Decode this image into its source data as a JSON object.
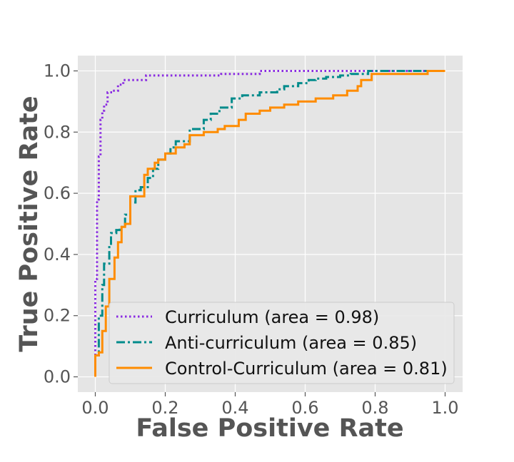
{
  "chart_data": {
    "type": "line",
    "title": "",
    "xlabel": "False Positive Rate",
    "ylabel": "True Positive Rate",
    "xlim": [
      -0.05,
      1.05
    ],
    "ylim": [
      -0.05,
      1.05
    ],
    "xticks": [
      0.0,
      0.2,
      0.4,
      0.6,
      0.8,
      1.0
    ],
    "yticks": [
      0.0,
      0.2,
      0.4,
      0.6,
      0.8,
      1.0
    ],
    "xtick_labels": [
      "0.0",
      "0.2",
      "0.4",
      "0.6",
      "0.8",
      "1.0"
    ],
    "ytick_labels": [
      "0.0",
      "0.2",
      "0.4",
      "0.6",
      "0.8",
      "1.0"
    ],
    "grid": true,
    "legend_position": "lower-right",
    "series": [
      {
        "name": "Curriculum (area = 0.98)",
        "color": "#8a2be2",
        "dash": "dotted",
        "x": [
          0,
          0,
          0.005,
          0.005,
          0.01,
          0.01,
          0.015,
          0.015,
          0.02,
          0.02,
          0.025,
          0.025,
          0.035,
          0.035,
          0.05,
          0.05,
          0.065,
          0.065,
          0.08,
          0.08,
          0.145,
          0.145,
          0.36,
          0.36,
          0.47,
          0.47,
          0.95,
          0.95,
          1.0
        ],
        "y": [
          0,
          0.32,
          0.32,
          0.58,
          0.58,
          0.72,
          0.72,
          0.84,
          0.84,
          0.87,
          0.87,
          0.89,
          0.89,
          0.93,
          0.93,
          0.935,
          0.935,
          0.955,
          0.955,
          0.97,
          0.97,
          0.985,
          0.985,
          0.99,
          0.99,
          1.0,
          1.0,
          1.0,
          1.0
        ]
      },
      {
        "name": "Anti-curriculum (area = 0.85)",
        "color": "#008b8b",
        "dash": "dashdot",
        "x": [
          0,
          0,
          0.01,
          0.01,
          0.02,
          0.02,
          0.025,
          0.025,
          0.04,
          0.04,
          0.045,
          0.045,
          0.06,
          0.06,
          0.07,
          0.07,
          0.085,
          0.085,
          0.1,
          0.1,
          0.115,
          0.115,
          0.13,
          0.13,
          0.15,
          0.15,
          0.165,
          0.165,
          0.18,
          0.18,
          0.2,
          0.2,
          0.215,
          0.215,
          0.23,
          0.23,
          0.27,
          0.27,
          0.31,
          0.31,
          0.33,
          0.33,
          0.355,
          0.355,
          0.39,
          0.39,
          0.42,
          0.42,
          0.47,
          0.47,
          0.52,
          0.52,
          0.54,
          0.54,
          0.58,
          0.58,
          0.61,
          0.61,
          0.63,
          0.63,
          0.66,
          0.66,
          0.7,
          0.7,
          0.73,
          0.73,
          0.78,
          0.78,
          0.96,
          0.96,
          1.0
        ],
        "y": [
          0,
          0.07,
          0.07,
          0.2,
          0.2,
          0.3,
          0.3,
          0.37,
          0.37,
          0.43,
          0.43,
          0.47,
          0.47,
          0.48,
          0.48,
          0.49,
          0.49,
          0.53,
          0.53,
          0.57,
          0.57,
          0.61,
          0.61,
          0.62,
          0.62,
          0.65,
          0.65,
          0.68,
          0.68,
          0.71,
          0.71,
          0.73,
          0.73,
          0.75,
          0.75,
          0.77,
          0.77,
          0.81,
          0.81,
          0.84,
          0.84,
          0.86,
          0.86,
          0.88,
          0.88,
          0.91,
          0.91,
          0.92,
          0.92,
          0.93,
          0.93,
          0.94,
          0.94,
          0.95,
          0.95,
          0.96,
          0.96,
          0.97,
          0.97,
          0.975,
          0.975,
          0.98,
          0.98,
          0.985,
          0.985,
          0.99,
          0.99,
          1.0,
          1.0,
          1.0,
          1.0
        ]
      },
      {
        "name": "Control-Curriculum (area = 0.81)",
        "color": "#ff8c00",
        "dash": "solid",
        "x": [
          0,
          0,
          0.01,
          0.01,
          0.02,
          0.02,
          0.03,
          0.03,
          0.04,
          0.04,
          0.055,
          0.055,
          0.065,
          0.065,
          0.075,
          0.075,
          0.085,
          0.085,
          0.1,
          0.1,
          0.14,
          0.14,
          0.15,
          0.15,
          0.17,
          0.17,
          0.18,
          0.18,
          0.2,
          0.2,
          0.23,
          0.23,
          0.255,
          0.255,
          0.27,
          0.27,
          0.31,
          0.31,
          0.35,
          0.35,
          0.37,
          0.37,
          0.41,
          0.41,
          0.43,
          0.43,
          0.47,
          0.47,
          0.5,
          0.5,
          0.54,
          0.54,
          0.58,
          0.58,
          0.63,
          0.63,
          0.68,
          0.68,
          0.72,
          0.72,
          0.75,
          0.75,
          0.76,
          0.76,
          0.79,
          0.79,
          0.95,
          0.95,
          1.0
        ],
        "y": [
          0,
          0.07,
          0.07,
          0.08,
          0.08,
          0.15,
          0.15,
          0.23,
          0.23,
          0.32,
          0.32,
          0.39,
          0.39,
          0.44,
          0.44,
          0.49,
          0.49,
          0.5,
          0.5,
          0.59,
          0.59,
          0.66,
          0.66,
          0.68,
          0.68,
          0.7,
          0.7,
          0.71,
          0.71,
          0.73,
          0.73,
          0.75,
          0.75,
          0.76,
          0.76,
          0.79,
          0.79,
          0.8,
          0.8,
          0.81,
          0.81,
          0.82,
          0.82,
          0.84,
          0.84,
          0.86,
          0.86,
          0.87,
          0.87,
          0.88,
          0.88,
          0.89,
          0.89,
          0.9,
          0.9,
          0.91,
          0.91,
          0.92,
          0.92,
          0.935,
          0.935,
          0.95,
          0.95,
          0.97,
          0.97,
          0.99,
          0.99,
          1.0,
          1.0
        ]
      }
    ]
  }
}
